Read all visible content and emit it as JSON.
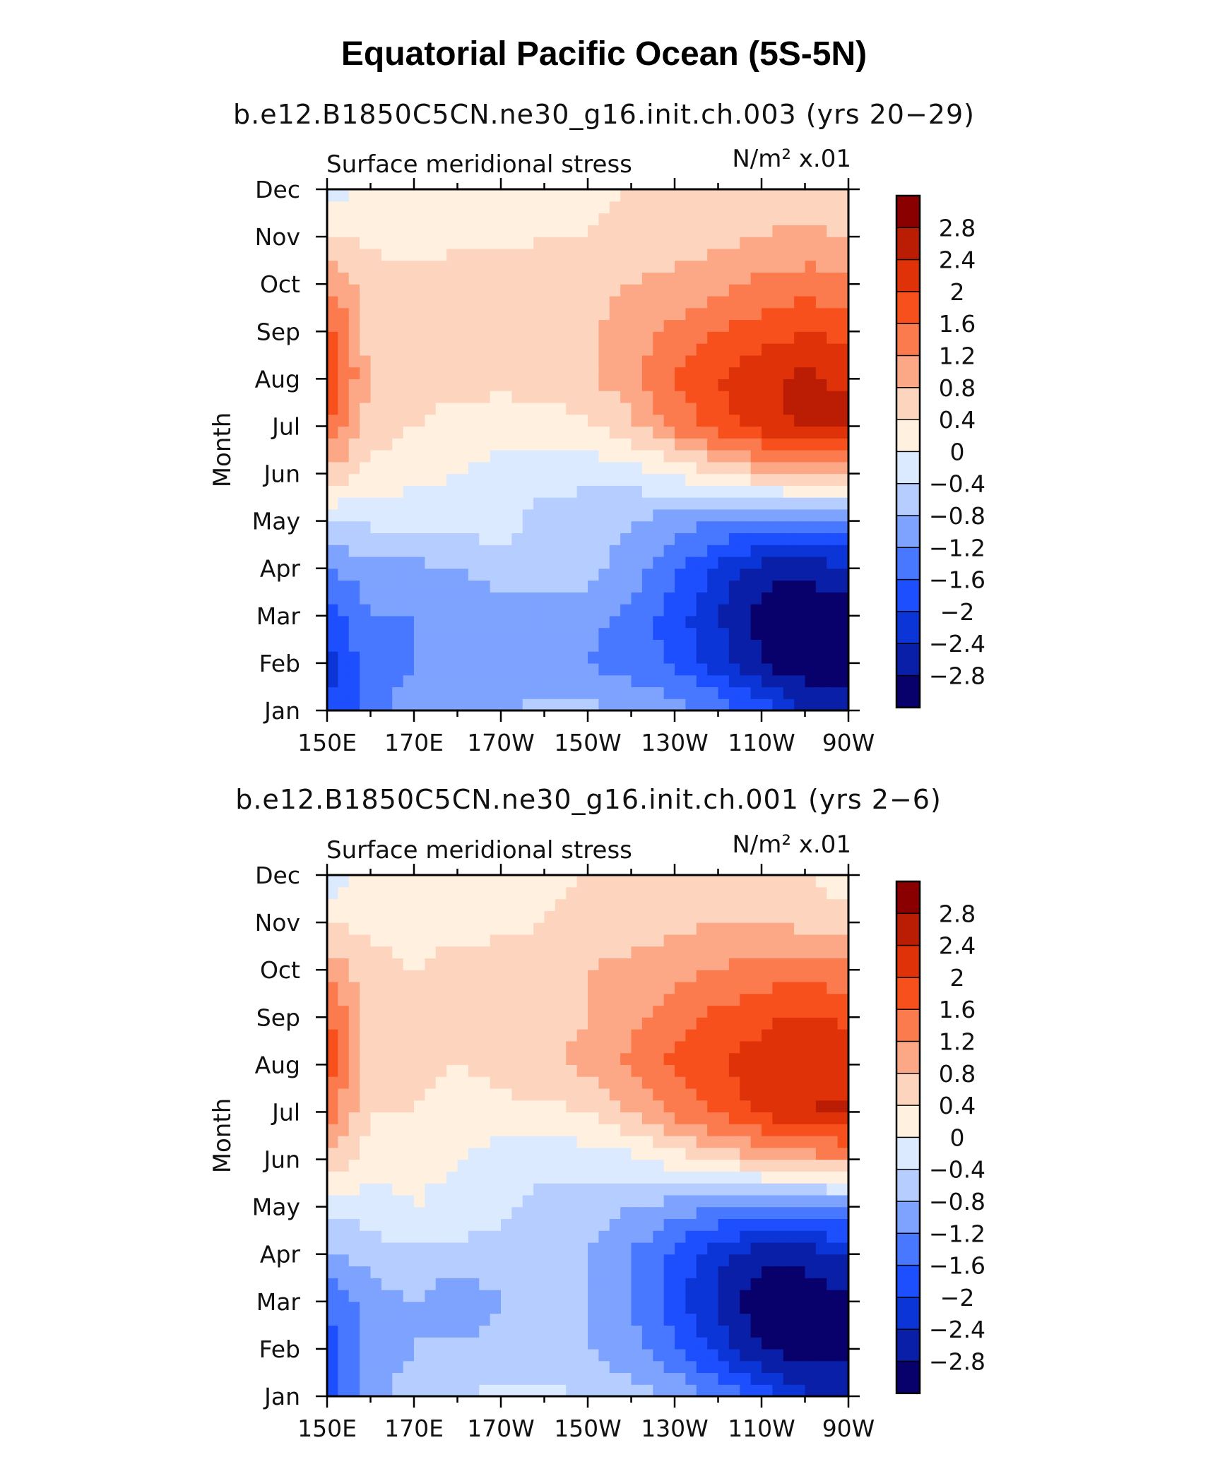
{
  "title": "Equatorial Pacific Ocean (5S-5N)",
  "colors": {
    "levels": [
      "#08006b",
      "#0a1fa8",
      "#0b35d6",
      "#1d4fff",
      "#4878ff",
      "#7ea3ff",
      "#b6cdff",
      "#dceaff",
      "#fff0e0",
      "#fdd5bf",
      "#fca886",
      "#fb7b4f",
      "#f7501d",
      "#e03208",
      "#ba1d04",
      "#8a0000"
    ]
  },
  "chart_data": [
    {
      "type": "heatmap",
      "subtitle": "b.e12.B1850C5CN.ne30_g16.init.ch.003 (yrs 20−29)",
      "left_label": "Surface meridional stress",
      "right_label": "N/m² x.01",
      "ylabel": "Month",
      "xlabel": "",
      "x_ticks": [
        "150E",
        "170E",
        "170W",
        "150W",
        "130W",
        "110W",
        "90W"
      ],
      "y_ticks": [
        "Jan",
        "Feb",
        "Mar",
        "Apr",
        "May",
        "Jun",
        "Jul",
        "Aug",
        "Sep",
        "Oct",
        "Nov",
        "Dec"
      ],
      "colorbar_labels": [
        "2.8",
        "2.4",
        "2",
        "1.6",
        "1.2",
        "0.8",
        "0.4",
        "0",
        "−0.4",
        "−0.8",
        "−1.2",
        "−1.6",
        "−2",
        "−2.4",
        "−2.8"
      ],
      "levels": [
        -2.8,
        -2.4,
        -2,
        -1.6,
        -1.2,
        -0.8,
        -0.4,
        0,
        0.4,
        0.8,
        1.2,
        1.6,
        2,
        2.4,
        2.8
      ],
      "x": [
        150,
        160,
        170,
        180,
        190,
        200,
        210,
        220,
        230,
        240,
        250,
        260,
        270
      ],
      "y": [
        "Jan",
        "Feb",
        "Mar",
        "Apr",
        "May",
        "Jun",
        "Jul",
        "Aug",
        "Sep",
        "Oct",
        "Nov",
        "Dec"
      ],
      "values": [
        [
          -2.0,
          -1.4,
          -1.0,
          -0.9,
          -0.8,
          -0.7,
          -0.7,
          -0.8,
          -1.0,
          -1.3,
          -1.8,
          -2.4,
          -2.6
        ],
        [
          -2.2,
          -1.4,
          -1.2,
          -1.1,
          -1.1,
          -1.1,
          -1.2,
          -1.4,
          -1.7,
          -2.2,
          -2.8,
          -3.1,
          -3.0
        ],
        [
          -1.8,
          -1.2,
          -1.2,
          -1.2,
          -1.2,
          -1.1,
          -1.1,
          -1.3,
          -1.8,
          -2.4,
          -3.0,
          -3.2,
          -3.0
        ],
        [
          -1.2,
          -1.0,
          -0.9,
          -0.8,
          -0.5,
          -0.5,
          -0.6,
          -1.0,
          -1.5,
          -2.1,
          -2.6,
          -2.7,
          -2.4
        ],
        [
          -0.4,
          -0.3,
          -0.2,
          -0.2,
          -0.3,
          -0.5,
          -0.6,
          -0.8,
          -1.0,
          -1.2,
          -1.3,
          -1.4,
          -1.3
        ],
        [
          0.7,
          0.3,
          0.1,
          0.0,
          -0.2,
          -0.3,
          -0.3,
          -0.2,
          0.1,
          0.4,
          0.7,
          0.9,
          1.0
        ],
        [
          1.6,
          0.6,
          0.4,
          0.3,
          0.2,
          0.2,
          0.3,
          0.7,
          1.3,
          1.8,
          2.2,
          2.5,
          2.6
        ],
        [
          2.1,
          0.7,
          0.5,
          0.5,
          0.5,
          0.6,
          0.7,
          1.1,
          1.6,
          2.0,
          2.3,
          2.5,
          2.3
        ],
        [
          1.8,
          0.6,
          0.5,
          0.5,
          0.6,
          0.6,
          0.7,
          1.0,
          1.3,
          1.6,
          1.8,
          2.0,
          1.9
        ],
        [
          1.2,
          0.6,
          0.5,
          0.6,
          0.6,
          0.7,
          0.7,
          0.8,
          0.9,
          1.1,
          1.3,
          1.4,
          1.3
        ],
        [
          0.5,
          0.3,
          0.3,
          0.3,
          0.3,
          0.4,
          0.4,
          0.5,
          0.6,
          0.7,
          0.8,
          0.9,
          0.8
        ],
        [
          -0.3,
          0.1,
          0.2,
          0.2,
          0.2,
          0.3,
          0.3,
          0.4,
          0.5,
          0.6,
          0.7,
          0.6,
          0.4
        ]
      ]
    },
    {
      "type": "heatmap",
      "subtitle": "b.e12.B1850C5CN.ne30_g16.init.ch.001 (yrs 2−6)",
      "left_label": "Surface meridional stress",
      "right_label": "N/m² x.01",
      "ylabel": "Month",
      "xlabel": "",
      "x_ticks": [
        "150E",
        "170E",
        "170W",
        "150W",
        "130W",
        "110W",
        "90W"
      ],
      "y_ticks": [
        "Jan",
        "Feb",
        "Mar",
        "Apr",
        "May",
        "Jun",
        "Jul",
        "Aug",
        "Sep",
        "Oct",
        "Nov",
        "Dec"
      ],
      "colorbar_labels": [
        "2.8",
        "2.4",
        "2",
        "1.6",
        "1.2",
        "0.8",
        "0.4",
        "0",
        "−0.4",
        "−0.8",
        "−1.2",
        "−1.6",
        "−2",
        "−2.4",
        "−2.8"
      ],
      "levels": [
        -2.8,
        -2.4,
        -2,
        -1.6,
        -1.2,
        -0.8,
        -0.4,
        0,
        0.4,
        0.8,
        1.2,
        1.6,
        2,
        2.4,
        2.8
      ],
      "x": [
        150,
        160,
        170,
        180,
        190,
        200,
        210,
        220,
        230,
        240,
        250,
        260,
        270
      ],
      "y": [
        "Jan",
        "Feb",
        "Mar",
        "Apr",
        "May",
        "Jun",
        "Jul",
        "Aug",
        "Sep",
        "Oct",
        "Nov",
        "Dec"
      ],
      "values": [
        [
          -1.8,
          -1.0,
          -0.6,
          -0.4,
          -0.3,
          -0.3,
          -0.4,
          -0.6,
          -0.9,
          -1.3,
          -1.8,
          -2.3,
          -2.4
        ],
        [
          -1.8,
          -1.0,
          -0.8,
          -0.7,
          -0.7,
          -0.7,
          -0.8,
          -1.1,
          -1.5,
          -2.1,
          -2.8,
          -3.1,
          -3.0
        ],
        [
          -1.6,
          -1.0,
          -0.8,
          -1.1,
          -0.8,
          -0.7,
          -0.8,
          -1.2,
          -1.8,
          -2.5,
          -3.1,
          -3.2,
          -2.9
        ],
        [
          -0.9,
          -0.6,
          -0.5,
          -0.5,
          -0.6,
          -0.7,
          -0.8,
          -1.2,
          -1.7,
          -2.3,
          -2.7,
          -2.6,
          -2.3
        ],
        [
          -0.3,
          -0.2,
          0.0,
          -0.1,
          -0.3,
          -0.5,
          -0.6,
          -0.8,
          -1.0,
          -1.2,
          -1.3,
          -1.4,
          -1.2
        ],
        [
          0.8,
          0.2,
          0.1,
          0.0,
          -0.2,
          -0.3,
          -0.2,
          -0.1,
          0.2,
          0.5,
          0.8,
          1.0,
          1.1
        ],
        [
          1.4,
          0.4,
          0.4,
          0.2,
          0.3,
          0.3,
          0.4,
          0.8,
          1.3,
          1.7,
          2.1,
          2.4,
          2.5
        ],
        [
          1.9,
          0.6,
          0.5,
          0.4,
          0.5,
          0.7,
          0.9,
          1.3,
          1.7,
          2.0,
          2.2,
          2.3,
          2.1
        ],
        [
          1.7,
          0.6,
          0.5,
          0.5,
          0.6,
          0.7,
          0.8,
          1.1,
          1.4,
          1.7,
          1.9,
          2.1,
          1.9
        ],
        [
          1.1,
          0.5,
          0.4,
          0.5,
          0.6,
          0.7,
          0.8,
          0.9,
          1.1,
          1.2,
          1.4,
          1.4,
          1.3
        ],
        [
          0.4,
          0.3,
          0.3,
          0.3,
          0.3,
          0.4,
          0.5,
          0.6,
          0.7,
          0.8,
          0.8,
          0.7,
          0.5
        ],
        [
          -0.3,
          0.2,
          0.2,
          0.3,
          0.3,
          0.3,
          0.4,
          0.4,
          0.5,
          0.5,
          0.5,
          0.4,
          0.2
        ]
      ]
    }
  ]
}
